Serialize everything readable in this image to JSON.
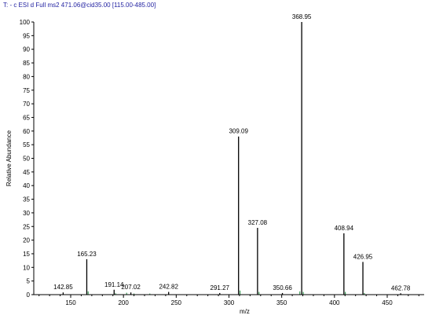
{
  "header": {
    "text": "T: - c ESI d Full ms2 471.06@cid35.00 [115.00-485.00]"
  },
  "chart_data": {
    "type": "bar",
    "title": "",
    "xlabel": "m/z",
    "ylabel": "Relative Abundance",
    "xlim": [
      115,
      485
    ],
    "ylim": [
      0,
      100
    ],
    "x_ticks": [
      150,
      200,
      250,
      300,
      350,
      400,
      450
    ],
    "y_ticks": [
      0,
      5,
      10,
      15,
      20,
      25,
      30,
      35,
      40,
      45,
      50,
      55,
      60,
      65,
      70,
      75,
      80,
      85,
      90,
      95,
      100
    ],
    "colors": {
      "line": "#000000",
      "minor_peak": "#1a8a3a",
      "header": "#1f1fa0"
    },
    "peaks": [
      {
        "mz": 142.85,
        "intensity": 0.8,
        "label": "142.85"
      },
      {
        "mz": 165.23,
        "intensity": 13.0,
        "label": "165.23"
      },
      {
        "mz": 191.14,
        "intensity": 1.8,
        "label": "191.14"
      },
      {
        "mz": 207.02,
        "intensity": 0.8,
        "label": "207.02"
      },
      {
        "mz": 242.82,
        "intensity": 1.0,
        "label": "242.82"
      },
      {
        "mz": 291.27,
        "intensity": 0.6,
        "label": "291.27"
      },
      {
        "mz": 309.09,
        "intensity": 58.0,
        "label": "309.09"
      },
      {
        "mz": 327.08,
        "intensity": 24.5,
        "label": "327.08"
      },
      {
        "mz": 350.66,
        "intensity": 0.6,
        "label": "350.66"
      },
      {
        "mz": 368.95,
        "intensity": 100.0,
        "label": "368.95"
      },
      {
        "mz": 408.94,
        "intensity": 22.5,
        "label": "408.94"
      },
      {
        "mz": 426.95,
        "intensity": 12.0,
        "label": "426.95"
      },
      {
        "mz": 462.78,
        "intensity": 0.5,
        "label": "462.78"
      }
    ],
    "minor_peaks": [
      {
        "mz": 166.5,
        "intensity": 1.2
      },
      {
        "mz": 192.5,
        "intensity": 0.5
      },
      {
        "mz": 203.0,
        "intensity": 0.7
      },
      {
        "mz": 210.0,
        "intensity": 0.4
      },
      {
        "mz": 225.0,
        "intensity": 0.4
      },
      {
        "mz": 310.5,
        "intensity": 1.5
      },
      {
        "mz": 328.5,
        "intensity": 1.0
      },
      {
        "mz": 367.2,
        "intensity": 1.2
      },
      {
        "mz": 370.4,
        "intensity": 1.0
      },
      {
        "mz": 410.3,
        "intensity": 1.0
      },
      {
        "mz": 428.3,
        "intensity": 0.6
      }
    ]
  }
}
